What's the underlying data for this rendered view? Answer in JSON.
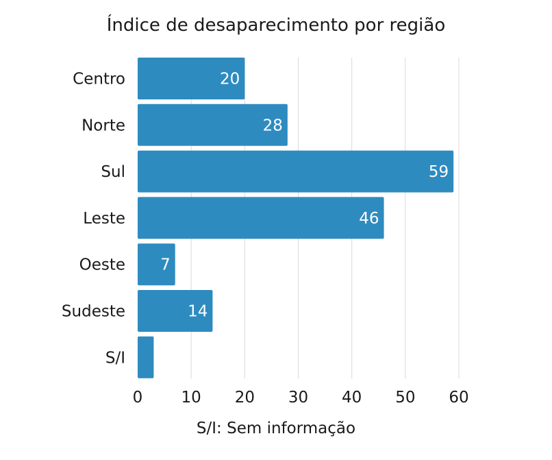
{
  "chart_data": {
    "type": "bar",
    "orientation": "horizontal",
    "title": "Índice de desaparecimento por região",
    "categories": [
      "Centro",
      "Norte",
      "Sul",
      "Leste",
      "Oeste",
      "Sudeste",
      "S/I"
    ],
    "values": [
      20,
      28,
      59,
      46,
      7,
      14,
      3
    ],
    "data_labels": [
      "20",
      "28",
      "59",
      "46",
      "7",
      "14",
      ""
    ],
    "x_ticks": [
      0,
      10,
      20,
      30,
      40,
      50,
      60
    ],
    "xlim": [
      0,
      60
    ],
    "xlabel": "",
    "ylabel": "",
    "note": "S/I: Sem informação",
    "grid": "vertical",
    "colors": {
      "bar": "#2e8bbf",
      "grid": "#d9d9d9",
      "label_inside": "#ffffff"
    }
  }
}
